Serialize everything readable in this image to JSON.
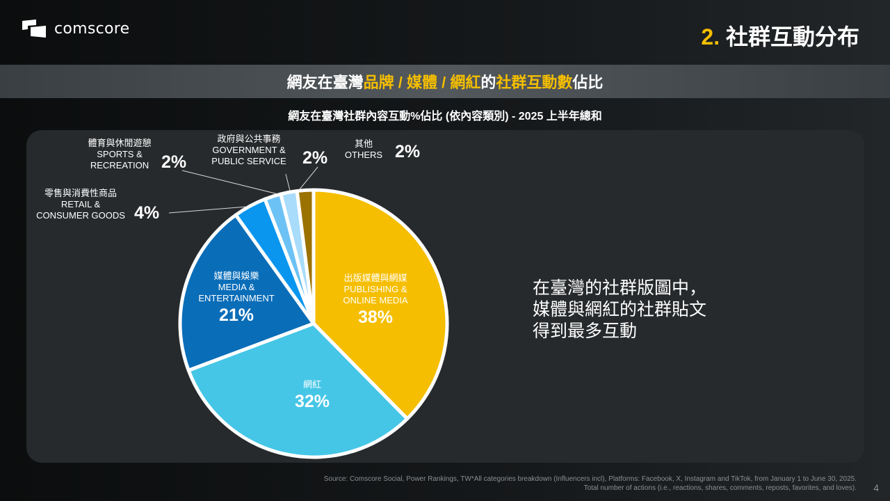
{
  "header": {
    "logo_text": "comscore",
    "title_num": "2.",
    "title_text": " 社群互動分布"
  },
  "banner": {
    "parts": [
      "網友在臺灣",
      "品牌 / 媒體 / 網紅",
      "的",
      "社群互動數",
      " 佔比"
    ]
  },
  "colors": {
    "accent": "#F5BE00"
  },
  "chart_data": {
    "type": "pie",
    "title": "網友在臺灣社群內容互動%佔比 (依內容類別) - 2025 上半年總和",
    "slices": [
      {
        "zh": "出版媒體與網媒",
        "en1": "PUBLISHING &",
        "en2": "ONLINE MEDIA",
        "value": 38,
        "label": "38%",
        "color": "#F5BE00"
      },
      {
        "zh": "網紅",
        "en1": "",
        "en2": "",
        "value": 32,
        "label": "32%",
        "color": "#45C6E6"
      },
      {
        "zh": "媒體與娛樂",
        "en1": "MEDIA &",
        "en2": "ENTERTAINMENT",
        "value": 21,
        "label": "21%",
        "color": "#0A6DB8"
      },
      {
        "zh": "零售與消費性商品",
        "en1": "RETAIL &",
        "en2": "CONSUMER GOODS",
        "value": 4,
        "label": "4%",
        "color": "#0A96EE"
      },
      {
        "zh": "體育與休閒遊憩",
        "en1": "SPORTS &",
        "en2": "RECREATION",
        "value": 2,
        "label": "2%",
        "color": "#6CC2F5"
      },
      {
        "zh": "政府與公共事務",
        "en1": "GOVERNMENT &",
        "en2": "PUBLIC SERVICE",
        "value": 2,
        "label": "2%",
        "color": "#A8DCFA"
      },
      {
        "zh": "其他",
        "en1": "OTHERS",
        "en2": "",
        "value": 2,
        "label": "2%",
        "color": "#9B7200"
      }
    ]
  },
  "takeaway": [
    "在臺灣的社群版圖中，",
    "媒體與網紅的社群貼文",
    "得到最多互動"
  ],
  "footer": {
    "source1": "Source: Comscore Social, Power Rankings, TW*All categories breakdown (Influencers incl), Platforms: Facebook, X, Instagram and TikTok, from January 1 to June 30, 2025.",
    "source2": "Total number of actions (i.e., reactions, shares, comments, reposts, favorites, and loves).",
    "page": "4"
  }
}
